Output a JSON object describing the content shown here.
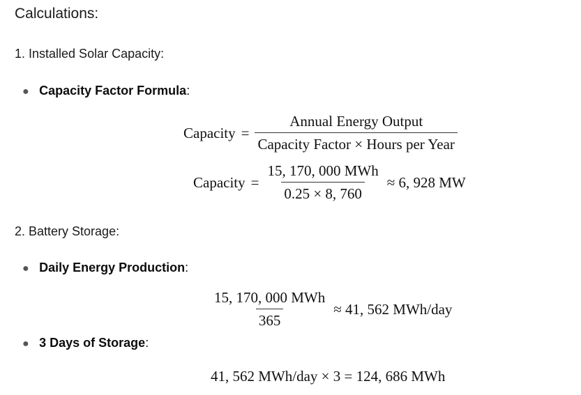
{
  "heading": "Calculations:",
  "section1": {
    "title": "1. Installed Solar Capacity:",
    "bullet": {
      "bold": "Capacity Factor Formula",
      "suffix": ":"
    },
    "formula": {
      "lhs": "Capacity",
      "eq": "=",
      "num": "Annual Energy Output",
      "den": "Capacity Factor × Hours per Year"
    },
    "calc": {
      "lhs": "Capacity",
      "eq": "=",
      "num": "15, 170, 000 MWh",
      "den": "0.25 × 8, 760",
      "result": "≈ 6, 928 MW"
    }
  },
  "section2": {
    "title": "2. Battery Storage:",
    "bullet1": {
      "bold": "Daily Energy Production",
      "suffix": ":"
    },
    "daily": {
      "num": "15, 170, 000 MWh",
      "den": "365",
      "result": "≈ 41, 562 MWh/day"
    },
    "bullet2": {
      "bold": "3 Days of Storage",
      "suffix": ":"
    },
    "storage": "41, 562 MWh/day × 3 = 124, 686 MWh"
  }
}
